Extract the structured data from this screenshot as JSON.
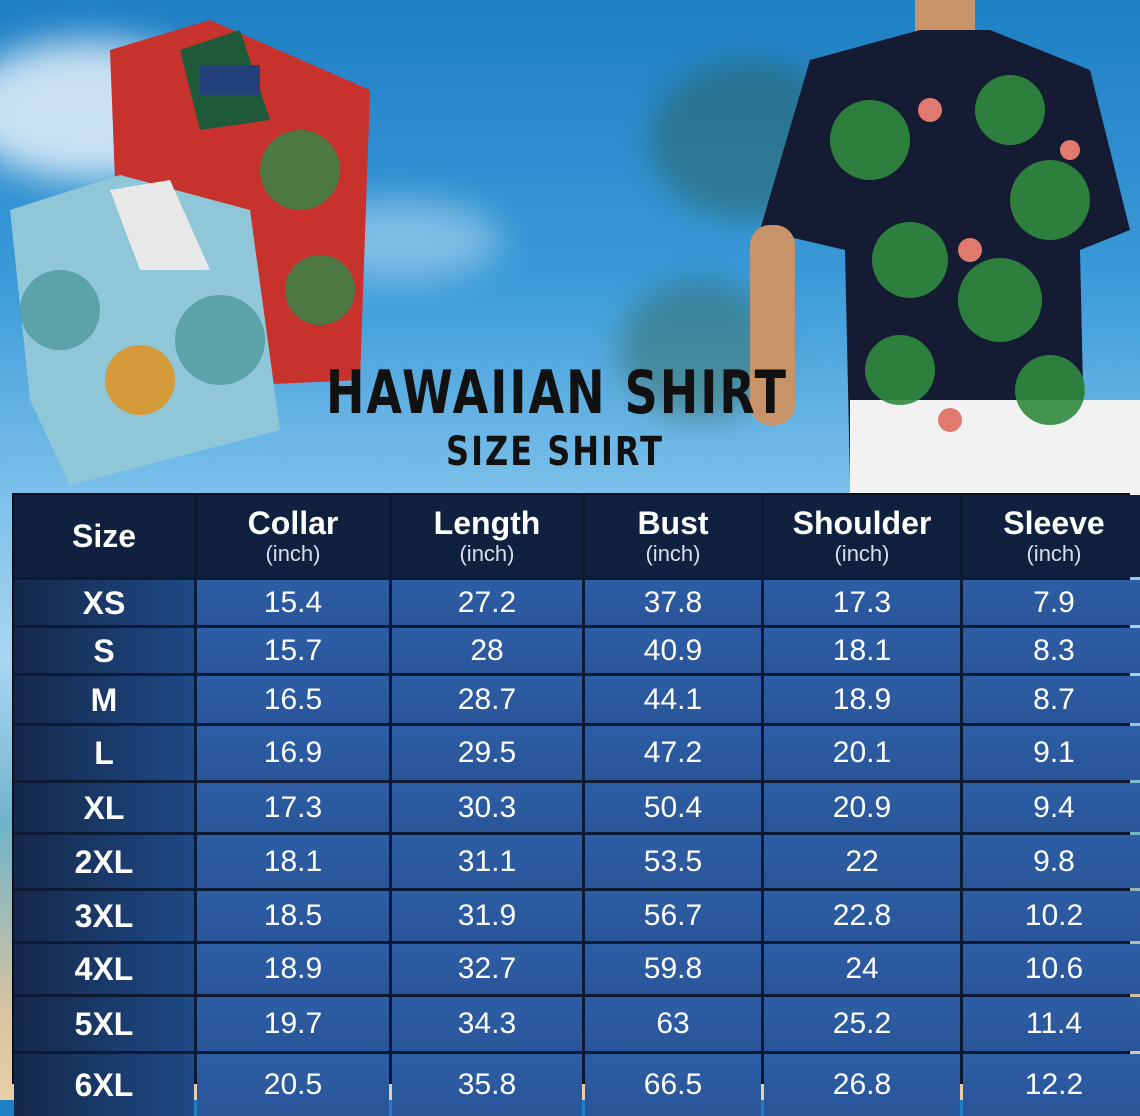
{
  "title": "HAWAIIAN SHIRT",
  "subtitle": "SIZE SHIRT",
  "colors": {
    "header_bg": "#0f213e",
    "cell_bg": "#2d5ea5",
    "size_col_bg": "#14284a",
    "text": "#ffffff",
    "title": "#111111"
  },
  "table": {
    "headers": [
      {
        "label": "Size",
        "unit": ""
      },
      {
        "label": "Collar",
        "unit": "(inch)"
      },
      {
        "label": "Length",
        "unit": "(inch)"
      },
      {
        "label": "Bust",
        "unit": "(inch)"
      },
      {
        "label": "Shoulder",
        "unit": "(inch)"
      },
      {
        "label": "Sleeve",
        "unit": "(inch)"
      }
    ],
    "rows": [
      [
        "XS",
        "15.4",
        "27.2",
        "37.8",
        "17.3",
        "7.9"
      ],
      [
        "S",
        "15.7",
        "28",
        "40.9",
        "18.1",
        "8.3"
      ],
      [
        "M",
        "16.5",
        "28.7",
        "44.1",
        "18.9",
        "8.7"
      ],
      [
        "L",
        "16.9",
        "29.5",
        "47.2",
        "20.1",
        "9.1"
      ],
      [
        "XL",
        "17.3",
        "30.3",
        "50.4",
        "20.9",
        "9.4"
      ],
      [
        "2XL",
        "18.1",
        "31.1",
        "53.5",
        "22",
        "9.8"
      ],
      [
        "3XL",
        "18.5",
        "31.9",
        "56.7",
        "22.8",
        "10.2"
      ],
      [
        "4XL",
        "18.9",
        "32.7",
        "59.8",
        "24",
        "10.6"
      ],
      [
        "5XL",
        "19.7",
        "34.3",
        "63",
        "25.2",
        "11.4"
      ],
      [
        "6XL",
        "20.5",
        "35.8",
        "66.5",
        "26.8",
        "12.2"
      ]
    ]
  }
}
